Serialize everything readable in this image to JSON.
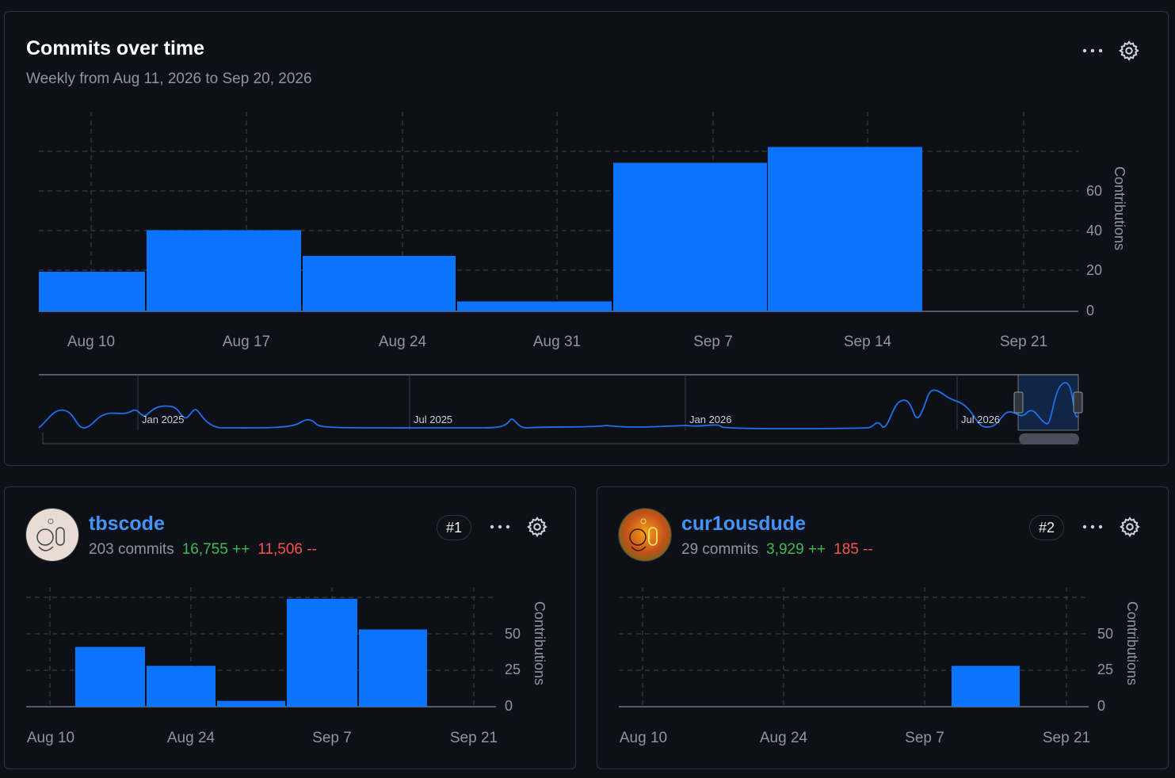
{
  "main": {
    "title": "Commits over time",
    "subtitle": "Weekly from Aug 11, 2026 to Sep 20, 2026",
    "menu_icon": "kebab-horizontal-icon",
    "settings_icon": "gear-icon",
    "overview_labels": [
      "Jan 2025",
      "Jul 2025",
      "Jan 2026",
      "Jul 2026"
    ]
  },
  "contributors": [
    {
      "username": "tbscode",
      "commits": "203 commits",
      "additions": "16,755 ++",
      "deletions": "11,506 --",
      "rank": "#1"
    },
    {
      "username": "cur1ousdude",
      "commits": "29 commits",
      "additions": "3,929 ++",
      "deletions": "185 --",
      "rank": "#2"
    }
  ],
  "colors": {
    "bar": "#0a74ff",
    "additions": "#3fb950",
    "deletions": "#f85149",
    "link": "#4493f8"
  },
  "chart_data": [
    {
      "type": "bar",
      "title": "Commits over time",
      "ylabel": "Contributions",
      "x_ticks": [
        "Aug 10",
        "Aug 17",
        "Aug 24",
        "Aug 31",
        "Sep 7",
        "Sep 14",
        "Sep 21"
      ],
      "y_ticks": [
        "0",
        "20",
        "40",
        "60"
      ],
      "ylim": [
        0,
        92
      ],
      "bars": [
        {
          "x0": "Aug 9.3",
          "x1": "Aug 16.3",
          "value": 20
        },
        {
          "x0": "Aug 16.3",
          "x1": "Aug 23.3",
          "value": 41
        },
        {
          "x0": "Aug 23.3",
          "x1": "Aug 30.3",
          "value": 28
        },
        {
          "x0": "Aug 30.3",
          "x1": "Sep 6.3",
          "value": 5
        },
        {
          "x0": "Sep 6.3",
          "x1": "Sep 13.3",
          "value": 75
        },
        {
          "x0": "Sep 13.3",
          "x1": "Sep 20.3",
          "value": 83
        }
      ],
      "grid": true
    },
    {
      "type": "bar",
      "ylabel": "Contributions",
      "x_ticks": [
        "Aug 10",
        "Aug 24",
        "Sep 7",
        "Sep 21"
      ],
      "y_ticks": [
        "0",
        "25",
        "50"
      ],
      "ylim": [
        0,
        75
      ],
      "values": [
        41,
        28,
        4,
        74,
        53
      ],
      "grid": true
    },
    {
      "type": "bar",
      "ylabel": "Contributions",
      "x_ticks": [
        "Aug 10",
        "Aug 24",
        "Sep 7",
        "Sep 21"
      ],
      "y_ticks": [
        "0",
        "25",
        "50"
      ],
      "ylim": [
        0,
        75
      ],
      "values": [
        0,
        0,
        0,
        0,
        28
      ],
      "grid": true
    }
  ]
}
